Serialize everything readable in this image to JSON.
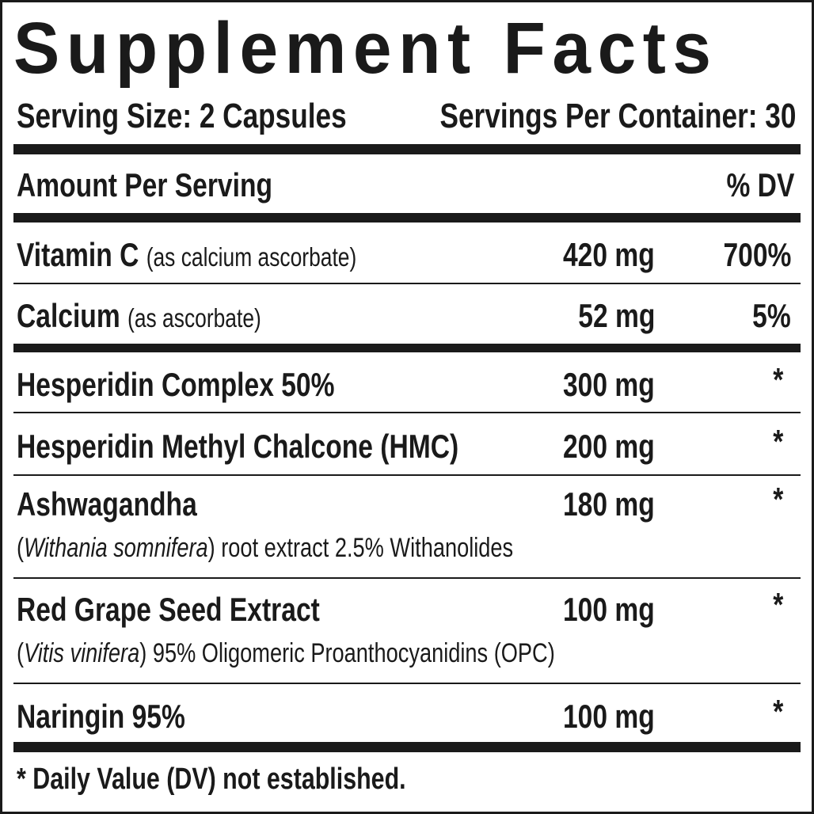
{
  "title": "Supplement Facts",
  "serving_size": "Serving Size: 2 Capsules",
  "servings_per_container": "Servings Per Container: 30",
  "header": {
    "amount": "Amount Per Serving",
    "dv": "% DV"
  },
  "rows": [
    {
      "name": "Vitamin C",
      "note": "(as calcium ascorbate)",
      "amount": "420 mg",
      "dv": "700%"
    },
    {
      "name": "Calcium",
      "note": "(as ascorbate)",
      "amount": "52 mg",
      "dv": "5%"
    },
    {
      "name": "Hesperidin Complex 50%",
      "amount": "300 mg",
      "dv": "*"
    },
    {
      "name": "Hesperidin Methyl Chalcone (HMC)",
      "amount": "200 mg",
      "dv": "*"
    },
    {
      "name": "Ashwagandha",
      "amount": "180 mg",
      "dv": "*",
      "detail": {
        "open": "(",
        "latin": "Withania somnifera",
        "rest": ") root extract 2.5% Withanolides"
      }
    },
    {
      "name": "Red Grape Seed Extract",
      "amount": "100 mg",
      "dv": "*",
      "detail": {
        "open": "(",
        "latin": "Vitis vinifera",
        "rest": ") 95% Oligomeric Proanthocyanidins (OPC)"
      }
    },
    {
      "name": "Naringin 95%",
      "amount": "100 mg",
      "dv": "*"
    }
  ],
  "footnote": "* Daily Value (DV) not established."
}
